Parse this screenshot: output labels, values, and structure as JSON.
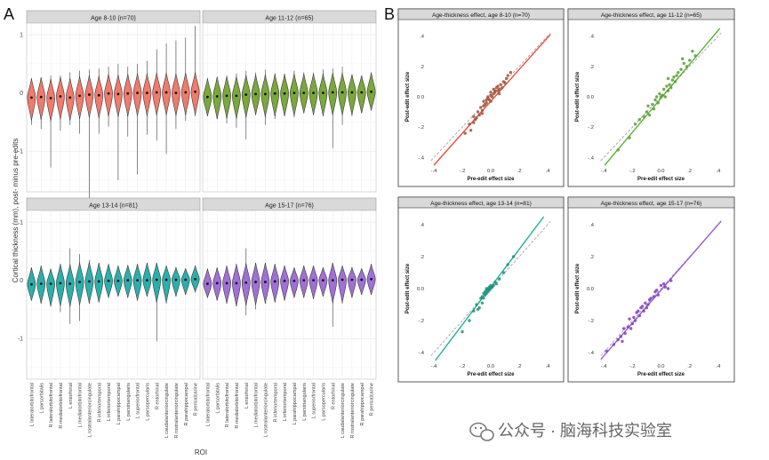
{
  "panel_letters": {
    "a": "A",
    "b": "B"
  },
  "watermark": {
    "text": "公众号 · 脑海科技实验室",
    "icon": "wechat-icon"
  },
  "colors": {
    "age_8_10": "#f07a6b",
    "age_11_12": "#7aa83a",
    "age_13_14": "#2ab0aa",
    "age_15_17": "#a070d6",
    "strip_fill": "#d9d9d9",
    "panel_bg": "#ebebeb",
    "line_8_10": "#e8503a",
    "line_11_12": "#5fb23a",
    "line_13_14": "#1fb09a",
    "line_15_17": "#9a5ad2",
    "point_8_10": "#a0523a",
    "point_11_12": "#5c9a34",
    "point_13_14": "#20907e",
    "point_15_17": "#7e40c0"
  },
  "chart_data": [
    {
      "type": "violin",
      "id": "panel-a",
      "ylabel": "Cortical thickness (mm), post- minus pre-edits",
      "xlabel": "ROI",
      "ylim": [
        -1.7,
        1.2
      ],
      "yticks": [
        "1",
        "0",
        "-1"
      ],
      "ytick_values": [
        1,
        0,
        -1
      ],
      "categories": [
        "L lateralorbitofrontal",
        "L parsorbitalis",
        "R lateralorbitofrontal",
        "R medialorbitofrontal",
        "L entorhinal",
        "L medialorbitofrontal",
        "L rostralanteriorcingulate",
        "R inferiortemporal",
        "L inferiortemporal",
        "L parahippocampal",
        "L parstriangularis",
        "L superiorfrontal",
        "L parsopercularis",
        "R entorhinal",
        "L caudalanteriorcingulate",
        "R rostralanteriorcingulate",
        "R parahippocampal",
        "R pericalcarine"
      ],
      "facets": [
        {
          "label": "Age 8-10 (n=70)",
          "color_key": "age_8_10",
          "medians": [
            -0.08,
            -0.07,
            -0.09,
            -0.06,
            -0.08,
            -0.05,
            -0.03,
            -0.04,
            -0.01,
            -0.02,
            -0.01,
            0.0,
            0.0,
            0.01,
            0.01,
            0.0,
            0.01,
            0.02
          ],
          "min": [
            -0.55,
            -0.62,
            -1.28,
            -0.65,
            -0.55,
            -0.7,
            -1.82,
            -0.7,
            -0.58,
            -1.5,
            -0.75,
            -1.4,
            -0.72,
            -0.82,
            -1.05,
            -0.62,
            -0.48,
            -0.4
          ],
          "max": [
            0.25,
            0.27,
            0.3,
            0.3,
            0.35,
            0.38,
            0.4,
            0.42,
            0.45,
            0.5,
            0.45,
            0.5,
            0.55,
            0.75,
            0.85,
            0.9,
            0.95,
            1.15
          ]
        },
        {
          "label": "Age 11-12 (n=65)",
          "color_key": "age_11_12",
          "medians": [
            -0.07,
            -0.06,
            -0.05,
            -0.05,
            -0.03,
            -0.02,
            -0.02,
            -0.01,
            -0.01,
            0.0,
            0.0,
            0.0,
            0.0,
            0.01,
            0.01,
            0.01,
            0.01,
            0.02
          ],
          "min": [
            -0.4,
            -0.45,
            -0.52,
            -0.6,
            -0.8,
            -0.38,
            -0.55,
            -0.45,
            -0.4,
            -0.42,
            -0.35,
            -0.38,
            -0.4,
            -0.95,
            -0.55,
            -0.4,
            -0.35,
            -0.3
          ],
          "max": [
            0.25,
            0.28,
            0.3,
            0.33,
            0.38,
            0.35,
            0.4,
            0.34,
            0.33,
            0.38,
            0.35,
            0.35,
            0.4,
            0.42,
            0.45,
            0.32,
            0.3,
            0.35
          ]
        },
        {
          "label": "Age 13-14 (n=81)",
          "color_key": "age_13_14",
          "medians": [
            -0.07,
            -0.06,
            -0.06,
            -0.05,
            -0.06,
            -0.03,
            -0.02,
            -0.02,
            -0.01,
            -0.01,
            0.0,
            0.0,
            0.0,
            0.01,
            0.01,
            0.01,
            0.01,
            0.02
          ],
          "min": [
            -0.35,
            -0.4,
            -0.45,
            -0.55,
            -0.75,
            -0.7,
            -0.4,
            -0.38,
            -0.3,
            -0.28,
            -0.3,
            -0.35,
            -0.28,
            -1.05,
            -0.4,
            -0.28,
            -0.25,
            -0.2
          ],
          "max": [
            0.22,
            0.25,
            0.2,
            0.28,
            0.55,
            0.45,
            0.35,
            0.3,
            0.28,
            0.25,
            0.26,
            0.28,
            0.3,
            0.3,
            0.25,
            0.22,
            0.2,
            0.25
          ]
        },
        {
          "label": "Age 15-17 (n=76)",
          "color_key": "age_15_17",
          "medians": [
            -0.06,
            -0.05,
            -0.05,
            -0.05,
            -0.04,
            -0.03,
            -0.03,
            -0.02,
            -0.01,
            -0.01,
            0.0,
            0.0,
            0.0,
            0.0,
            0.01,
            0.01,
            0.01,
            0.02
          ],
          "min": [
            -0.3,
            -0.35,
            -0.4,
            -0.45,
            -0.6,
            -0.5,
            -0.4,
            -0.38,
            -0.35,
            -0.3,
            -0.3,
            -0.32,
            -0.28,
            -0.8,
            -0.4,
            -0.3,
            -0.25,
            -0.25
          ],
          "max": [
            0.2,
            0.22,
            0.25,
            0.28,
            0.55,
            0.3,
            0.3,
            0.28,
            0.25,
            0.22,
            0.25,
            0.25,
            0.22,
            0.3,
            0.25,
            0.22,
            0.2,
            0.28
          ]
        }
      ]
    },
    {
      "type": "scatter",
      "id": "panel-b",
      "xlabel": "Pre-edit effect size",
      "ylabel": "Post-edit effect size",
      "xlim": [
        -0.45,
        0.45
      ],
      "ylim": [
        -0.45,
        0.45
      ],
      "ticks": [
        -0.4,
        -0.2,
        0.0,
        0.2,
        0.4
      ],
      "tick_labels": [
        "-.4",
        "-.2",
        "0.0",
        ".2",
        ".4"
      ],
      "facets": [
        {
          "title": "Age-thickness effect, age 8-10 (n=70)",
          "color_key": "age_8_10",
          "fit": {
            "slope": 1.05,
            "intercept": -0.03
          },
          "x": [
            -0.18,
            -0.15,
            -0.12,
            -0.12,
            -0.1,
            -0.09,
            -0.08,
            -0.07,
            -0.06,
            -0.05,
            -0.05,
            -0.04,
            -0.03,
            -0.03,
            -0.02,
            -0.02,
            -0.01,
            0.0,
            0.0,
            0.01,
            0.02,
            0.02,
            0.03,
            0.04,
            0.05,
            0.05,
            0.06,
            0.07,
            0.08,
            0.09,
            0.1,
            0.12,
            0.14,
            -0.11,
            -0.06,
            0.0,
            0.03,
            0.06,
            0.11,
            -0.14
          ],
          "y": [
            -0.24,
            -0.18,
            -0.17,
            -0.13,
            -0.14,
            -0.1,
            -0.12,
            -0.07,
            -0.09,
            -0.06,
            -0.03,
            -0.05,
            -0.02,
            -0.04,
            -0.01,
            0.0,
            -0.02,
            0.01,
            0.03,
            0.0,
            0.02,
            0.05,
            0.03,
            0.06,
            0.04,
            0.07,
            0.05,
            0.08,
            0.06,
            0.1,
            0.09,
            0.14,
            0.16,
            -0.15,
            -0.11,
            -0.03,
            0.04,
            0.02,
            0.12,
            -0.22
          ]
        },
        {
          "title": "Age-thickness effect, age 11-12 (n=65)",
          "color_key": "age_11_12",
          "fit": {
            "slope": 1.12,
            "intercept": -0.01
          },
          "x": [
            -0.3,
            -0.22,
            -0.18,
            -0.15,
            -0.12,
            -0.1,
            -0.08,
            -0.06,
            -0.05,
            -0.04,
            -0.02,
            -0.01,
            0.0,
            0.01,
            0.02,
            0.03,
            0.05,
            0.06,
            0.07,
            0.08,
            0.1,
            0.11,
            0.12,
            0.14,
            0.16,
            0.18,
            0.2,
            0.22,
            -0.09,
            -0.03,
            0.04,
            0.09,
            0.15,
            0.24,
            0.05
          ],
          "y": [
            -0.35,
            -0.27,
            -0.18,
            -0.15,
            -0.13,
            -0.1,
            -0.12,
            -0.05,
            -0.08,
            -0.02,
            -0.04,
            0.02,
            0.0,
            0.01,
            0.05,
            0.0,
            0.04,
            0.08,
            0.06,
            0.11,
            0.1,
            0.14,
            0.16,
            0.18,
            0.22,
            0.2,
            0.24,
            0.3,
            -0.06,
            0.0,
            0.07,
            0.13,
            0.25,
            0.27,
            0.12
          ]
        },
        {
          "title": "Age-thickness effect, age 13-14 (n=81)",
          "color_key": "age_13_14",
          "fit": {
            "slope": 1.18,
            "intercept": 0.01
          },
          "x": [
            -0.2,
            -0.15,
            -0.12,
            -0.1,
            -0.08,
            -0.07,
            -0.06,
            -0.05,
            -0.05,
            -0.04,
            -0.04,
            -0.03,
            -0.03,
            -0.02,
            -0.02,
            -0.01,
            -0.01,
            0.0,
            0.0,
            0.0,
            0.01,
            0.02,
            0.03,
            0.04,
            0.06,
            0.09,
            0.12,
            0.16,
            -0.06,
            -0.03,
            -0.01,
            0.01,
            -0.09
          ],
          "y": [
            -0.27,
            -0.2,
            -0.14,
            -0.1,
            -0.12,
            -0.06,
            -0.09,
            -0.03,
            -0.06,
            -0.02,
            -0.04,
            -0.01,
            -0.03,
            0.0,
            -0.02,
            0.01,
            -0.01,
            0.0,
            0.02,
            0.01,
            0.01,
            0.02,
            0.04,
            0.03,
            0.06,
            0.1,
            0.15,
            0.2,
            -0.05,
            0.0,
            0.0,
            0.01,
            -0.13
          ]
        },
        {
          "title": "Age-thickness effect, age 15-17 (n=76)",
          "color_key": "age_15_17",
          "fit": {
            "slope": 1.03,
            "intercept": -0.01
          },
          "x": [
            -0.38,
            -0.33,
            -0.3,
            -0.28,
            -0.26,
            -0.25,
            -0.23,
            -0.22,
            -0.2,
            -0.19,
            -0.18,
            -0.16,
            -0.15,
            -0.14,
            -0.12,
            -0.11,
            -0.1,
            -0.08,
            -0.07,
            -0.05,
            -0.04,
            -0.02,
            0.0,
            0.02,
            0.05,
            0.07,
            -0.27,
            -0.21,
            -0.17,
            -0.13,
            -0.09,
            -0.03,
            0.03
          ],
          "y": [
            -0.39,
            -0.35,
            -0.32,
            -0.3,
            -0.25,
            -0.28,
            -0.24,
            -0.19,
            -0.22,
            -0.18,
            -0.2,
            -0.14,
            -0.17,
            -0.12,
            -0.14,
            -0.09,
            -0.12,
            -0.07,
            -0.06,
            -0.05,
            -0.02,
            -0.04,
            0.02,
            0.03,
            0.0,
            0.05,
            -0.33,
            -0.25,
            -0.15,
            -0.11,
            -0.1,
            -0.01,
            0.01
          ]
        }
      ]
    }
  ]
}
